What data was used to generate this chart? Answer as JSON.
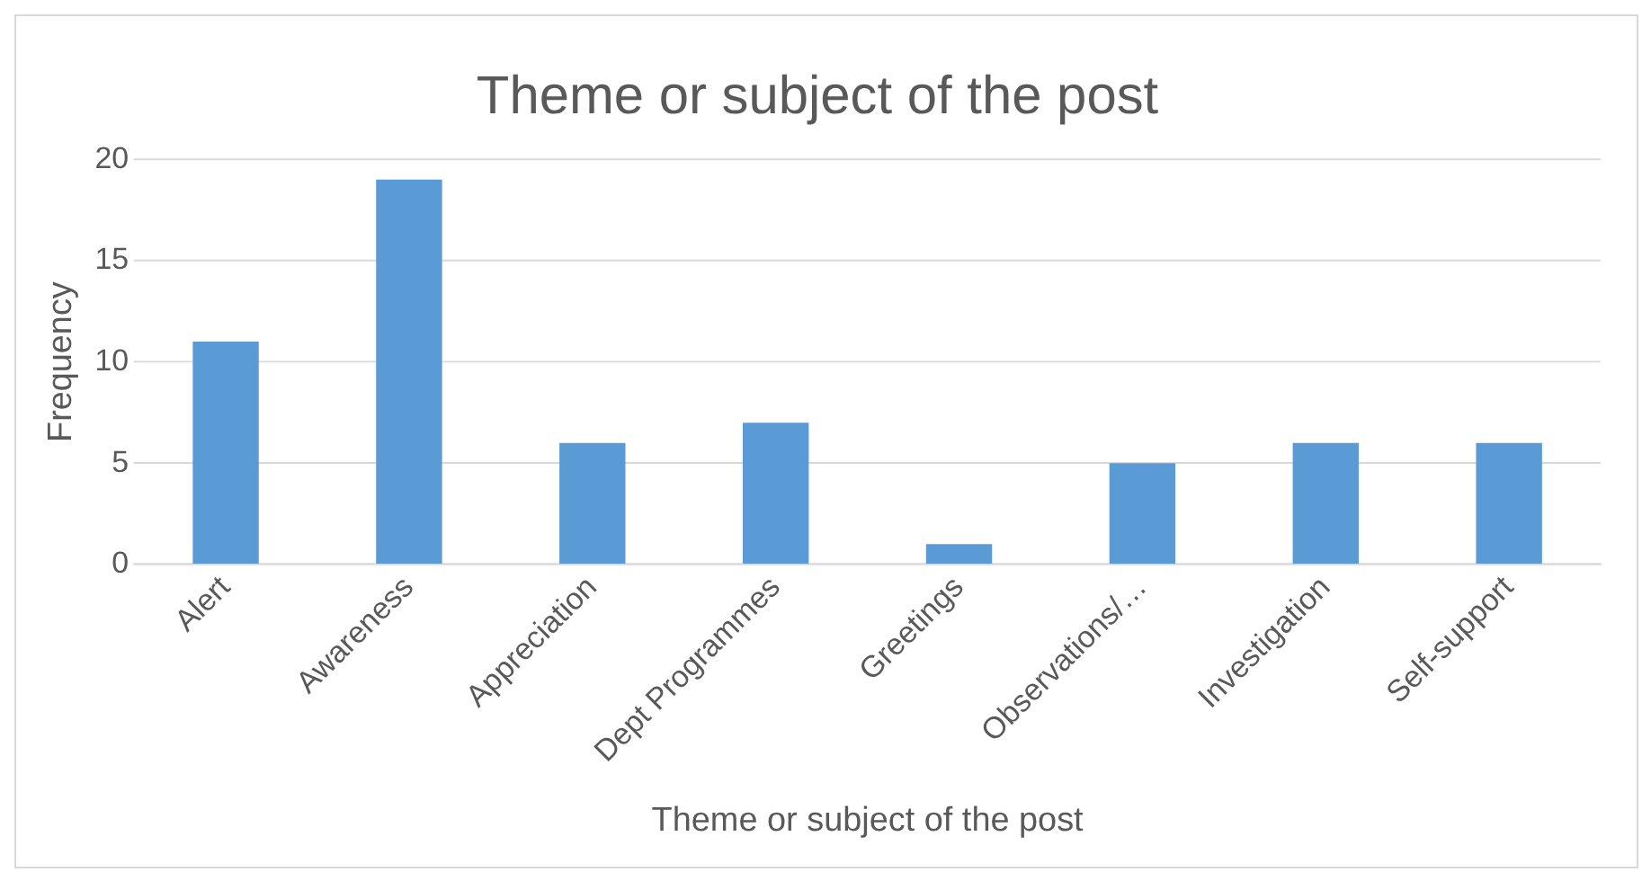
{
  "chart_data": {
    "type": "bar",
    "title": "Theme or subject of the post",
    "xlabel": "Theme or subject of the post",
    "ylabel": "Frequency",
    "categories": [
      "Alert",
      "Awareness",
      "Appreciation",
      "Dept Programmes",
      "Greetings",
      "Observations/…",
      "Investigation",
      "Self-support"
    ],
    "values": [
      11,
      19,
      6,
      7,
      1,
      5,
      6,
      6
    ],
    "color": "#5b9bd5",
    "ylim": [
      0,
      20
    ],
    "yticks": [
      0,
      5,
      10,
      15,
      20
    ],
    "grid": "y",
    "legend": false
  }
}
